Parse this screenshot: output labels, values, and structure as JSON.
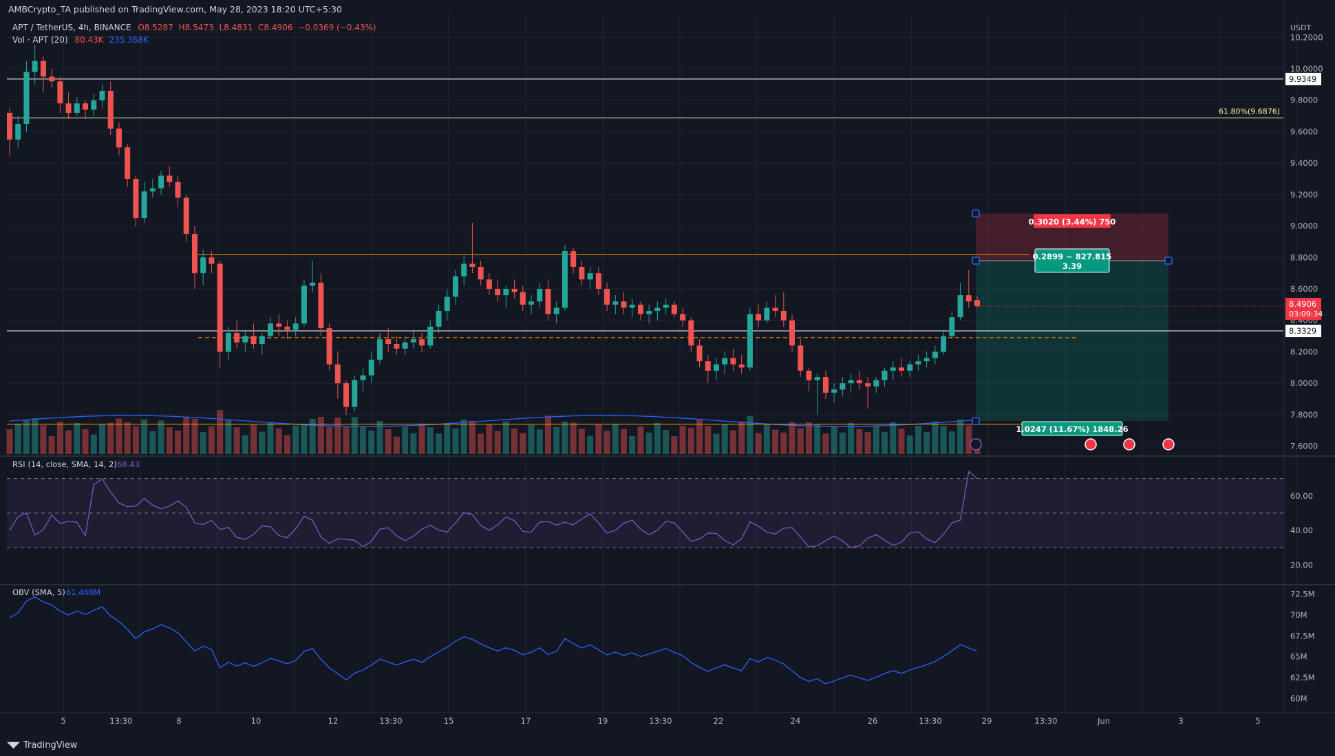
{
  "header": {
    "publisher": "AMBCrypto_TA published on TradingView.com, May 28, 2023 18:20 UTC+5:30",
    "symbol": "APT / TetherUS, 4h, BINANCE",
    "ohlc": {
      "open": "O8.5287",
      "high": "H8.5473",
      "low": "L8.4831",
      "close": "C8.4906",
      "change": "−0.0369 (−0.43%)"
    },
    "volume_label": "Vol · APT (20)",
    "volume_values": [
      "80.43K",
      "235.368K"
    ]
  },
  "price_scale": {
    "unit": "USDT",
    "ticks": [
      "10.2000",
      "10.0000",
      "9.8000",
      "9.6000",
      "9.4000",
      "9.2000",
      "9.0000",
      "8.8000",
      "8.6000",
      "8.4000",
      "8.2000",
      "8.0000",
      "7.8000",
      "7.6000"
    ],
    "current_price": "8.4906",
    "countdown": "03:09:34",
    "level_labels": [
      "9.9349",
      "8.3329"
    ]
  },
  "chart_data": {
    "type": "candlestick",
    "timeframe": "4h",
    "x_ticks": [
      "5",
      "13:30",
      "8",
      "10",
      "12",
      "13:30",
      "15",
      "17",
      "19",
      "13:30",
      "22",
      "24",
      "26",
      "13:30",
      "29",
      "13:30",
      "Jun",
      "3",
      "5"
    ],
    "ylim": [
      7.55,
      10.35
    ],
    "horizontal_lines": [
      {
        "value": 9.9349,
        "label": "9.9349",
        "color": "#ffffff"
      },
      {
        "value": 9.6876,
        "label": "61.80%(9.6876)",
        "color": "#fff59d"
      },
      {
        "value": 8.3329,
        "label": "8.3329",
        "color": "#ffffff"
      },
      {
        "value": 8.82,
        "color": "#ff9800"
      },
      {
        "value": 7.74,
        "color": "#ff9800"
      },
      {
        "value": 8.29,
        "color": "#ff9800",
        "dashed": true
      }
    ],
    "position_tool": {
      "stop": "0.3020 (3.44%) 750",
      "entry": "0.2899 ~ 827.815",
      "ratio": "3.39",
      "target": "1.0247 (11.67%) 1848.26",
      "stop_price": 9.08,
      "entry_price": 8.78,
      "target_price": 7.76
    },
    "candles": [
      [
        9.72,
        9.75,
        9.45,
        9.55
      ],
      [
        9.55,
        9.7,
        9.5,
        9.65
      ],
      [
        9.65,
        10.05,
        9.6,
        9.98
      ],
      [
        9.98,
        10.15,
        9.9,
        10.05
      ],
      [
        10.05,
        10.08,
        9.85,
        9.95
      ],
      [
        9.95,
        10.0,
        9.88,
        9.92
      ],
      [
        9.92,
        9.95,
        9.72,
        9.78
      ],
      [
        9.78,
        9.85,
        9.68,
        9.72
      ],
      [
        9.72,
        9.82,
        9.7,
        9.78
      ],
      [
        9.78,
        9.8,
        9.68,
        9.74
      ],
      [
        9.74,
        9.84,
        9.7,
        9.8
      ],
      [
        9.8,
        9.9,
        9.75,
        9.86
      ],
      [
        9.86,
        9.92,
        9.58,
        9.62
      ],
      [
        9.62,
        9.66,
        9.45,
        9.5
      ],
      [
        9.5,
        9.52,
        9.25,
        9.3
      ],
      [
        9.3,
        9.32,
        9.0,
        9.05
      ],
      [
        9.05,
        9.28,
        9.02,
        9.22
      ],
      [
        9.22,
        9.3,
        9.18,
        9.24
      ],
      [
        9.24,
        9.35,
        9.2,
        9.32
      ],
      [
        9.32,
        9.38,
        9.25,
        9.28
      ],
      [
        9.28,
        9.32,
        9.12,
        9.18
      ],
      [
        9.18,
        9.2,
        8.9,
        8.95
      ],
      [
        8.95,
        9.0,
        8.6,
        8.7
      ],
      [
        8.7,
        8.85,
        8.62,
        8.8
      ],
      [
        8.8,
        8.84,
        8.7,
        8.76
      ],
      [
        8.76,
        8.78,
        8.1,
        8.2
      ],
      [
        8.2,
        8.36,
        8.15,
        8.32
      ],
      [
        8.32,
        8.4,
        8.22,
        8.26
      ],
      [
        8.26,
        8.34,
        8.2,
        8.3
      ],
      [
        8.3,
        8.38,
        8.22,
        8.25
      ],
      [
        8.25,
        8.32,
        8.18,
        8.3
      ],
      [
        8.3,
        8.42,
        8.28,
        8.38
      ],
      [
        8.38,
        8.44,
        8.3,
        8.36
      ],
      [
        8.36,
        8.4,
        8.28,
        8.34
      ],
      [
        8.34,
        8.42,
        8.3,
        8.38
      ],
      [
        8.38,
        8.66,
        8.36,
        8.62
      ],
      [
        8.62,
        8.78,
        8.58,
        8.64
      ],
      [
        8.64,
        8.7,
        8.3,
        8.35
      ],
      [
        8.35,
        8.38,
        8.08,
        8.12
      ],
      [
        8.12,
        8.2,
        7.9,
        8.0
      ],
      [
        8.0,
        8.02,
        7.8,
        7.85
      ],
      [
        7.85,
        8.05,
        7.82,
        8.02
      ],
      [
        8.02,
        8.1,
        7.95,
        8.05
      ],
      [
        8.05,
        8.2,
        8.0,
        8.15
      ],
      [
        8.15,
        8.32,
        8.12,
        8.28
      ],
      [
        8.28,
        8.35,
        8.2,
        8.25
      ],
      [
        8.25,
        8.3,
        8.18,
        8.22
      ],
      [
        8.22,
        8.3,
        8.18,
        8.26
      ],
      [
        8.26,
        8.34,
        8.22,
        8.28
      ],
      [
        8.28,
        8.32,
        8.2,
        8.24
      ],
      [
        8.24,
        8.4,
        8.22,
        8.36
      ],
      [
        8.36,
        8.5,
        8.32,
        8.46
      ],
      [
        8.46,
        8.6,
        8.4,
        8.55
      ],
      [
        8.55,
        8.72,
        8.5,
        8.68
      ],
      [
        8.68,
        8.82,
        8.62,
        8.76
      ],
      [
        8.76,
        9.02,
        8.7,
        8.74
      ],
      [
        8.74,
        8.78,
        8.62,
        8.66
      ],
      [
        8.66,
        8.7,
        8.56,
        8.6
      ],
      [
        8.6,
        8.66,
        8.52,
        8.56
      ],
      [
        8.56,
        8.62,
        8.48,
        8.6
      ],
      [
        8.6,
        8.66,
        8.54,
        8.58
      ],
      [
        8.58,
        8.62,
        8.46,
        8.5
      ],
      [
        8.5,
        8.56,
        8.44,
        8.52
      ],
      [
        8.52,
        8.64,
        8.48,
        8.6
      ],
      [
        8.6,
        8.66,
        8.4,
        8.44
      ],
      [
        8.44,
        8.52,
        8.38,
        8.48
      ],
      [
        8.48,
        8.88,
        8.46,
        8.84
      ],
      [
        8.84,
        8.86,
        8.7,
        8.74
      ],
      [
        8.74,
        8.78,
        8.62,
        8.66
      ],
      [
        8.66,
        8.74,
        8.6,
        8.7
      ],
      [
        8.7,
        8.74,
        8.56,
        8.6
      ],
      [
        8.6,
        8.64,
        8.46,
        8.5
      ],
      [
        8.5,
        8.56,
        8.44,
        8.52
      ],
      [
        8.52,
        8.58,
        8.44,
        8.48
      ],
      [
        8.48,
        8.54,
        8.42,
        8.5
      ],
      [
        8.5,
        8.52,
        8.4,
        8.44
      ],
      [
        8.44,
        8.5,
        8.38,
        8.46
      ],
      [
        8.46,
        8.52,
        8.4,
        8.48
      ],
      [
        8.48,
        8.54,
        8.44,
        8.5
      ],
      [
        8.5,
        8.52,
        8.42,
        8.44
      ],
      [
        8.44,
        8.48,
        8.36,
        8.4
      ],
      [
        8.4,
        8.42,
        8.2,
        8.24
      ],
      [
        8.24,
        8.28,
        8.1,
        8.14
      ],
      [
        8.14,
        8.18,
        8.0,
        8.08
      ],
      [
        8.08,
        8.16,
        8.02,
        8.12
      ],
      [
        8.12,
        8.2,
        8.06,
        8.16
      ],
      [
        8.16,
        8.22,
        8.08,
        8.12
      ],
      [
        8.12,
        8.18,
        8.06,
        8.1
      ],
      [
        8.1,
        8.48,
        8.08,
        8.44
      ],
      [
        8.44,
        8.5,
        8.36,
        8.4
      ],
      [
        8.4,
        8.52,
        8.38,
        8.48
      ],
      [
        8.48,
        8.56,
        8.42,
        8.46
      ],
      [
        8.46,
        8.58,
        8.36,
        8.4
      ],
      [
        8.4,
        8.44,
        8.2,
        8.24
      ],
      [
        8.24,
        8.28,
        8.04,
        8.08
      ],
      [
        8.08,
        8.1,
        7.95,
        8.02
      ],
      [
        8.02,
        8.06,
        7.8,
        8.04
      ],
      [
        8.04,
        8.08,
        7.9,
        7.94
      ],
      [
        7.94,
        8.0,
        7.88,
        7.96
      ],
      [
        7.96,
        8.04,
        7.92,
        8.0
      ],
      [
        8.0,
        8.06,
        7.94,
        8.02
      ],
      [
        8.02,
        8.08,
        7.96,
        8.0
      ],
      [
        8.0,
        8.04,
        7.84,
        7.98
      ],
      [
        7.98,
        8.04,
        7.94,
        8.02
      ],
      [
        8.02,
        8.1,
        7.98,
        8.08
      ],
      [
        8.08,
        8.14,
        8.02,
        8.1
      ],
      [
        8.1,
        8.16,
        8.04,
        8.08
      ],
      [
        8.08,
        8.14,
        8.04,
        8.12
      ],
      [
        8.12,
        8.18,
        8.08,
        8.14
      ],
      [
        8.14,
        8.2,
        8.1,
        8.16
      ],
      [
        8.16,
        8.24,
        8.12,
        8.2
      ],
      [
        8.2,
        8.34,
        8.18,
        8.3
      ],
      [
        8.3,
        8.46,
        8.28,
        8.42
      ],
      [
        8.42,
        8.64,
        8.4,
        8.56
      ],
      [
        8.56,
        8.72,
        8.48,
        8.52
      ],
      [
        8.53,
        8.55,
        8.48,
        8.49
      ]
    ],
    "volume_ma": "SMA 20",
    "rsi": {
      "label": "RSI (14, close, SMA, 14, 2)",
      "value": "68.43",
      "ticks": [
        "60.00",
        "40.00",
        "20.00"
      ]
    },
    "obv": {
      "label": "OBV (SMA, 5)",
      "value": "61.468M",
      "ticks": [
        "72.5M",
        "70M",
        "67.5M",
        "65M",
        "62.5M",
        "60M"
      ]
    }
  },
  "footer": {
    "brand": "TradingView"
  },
  "colors": {
    "up": "#26a69a",
    "down": "#ef5350",
    "bg": "#131722",
    "grid": "#1f2433",
    "rsi": "#7e57c2",
    "obv": "#2962ff"
  }
}
